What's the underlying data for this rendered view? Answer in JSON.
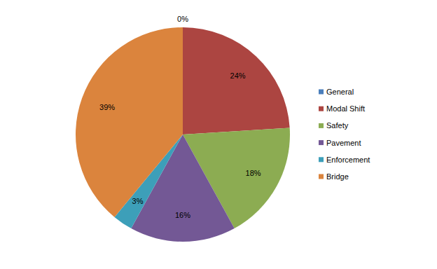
{
  "chart_data": {
    "type": "pie",
    "categories": [
      "General",
      "Modal Shift",
      "Safety",
      "Pavement",
      "Enforcement",
      "Bridge"
    ],
    "values": [
      0,
      24,
      18,
      16,
      3,
      39
    ],
    "value_labels": [
      "0%",
      "24%",
      "18%",
      "16%",
      "3%",
      "39%"
    ],
    "colors": [
      "#4a7ebb",
      "#ac4541",
      "#8cac52",
      "#735895",
      "#3d9fb9",
      "#db843d"
    ],
    "data_labels": true,
    "legend": "right"
  }
}
